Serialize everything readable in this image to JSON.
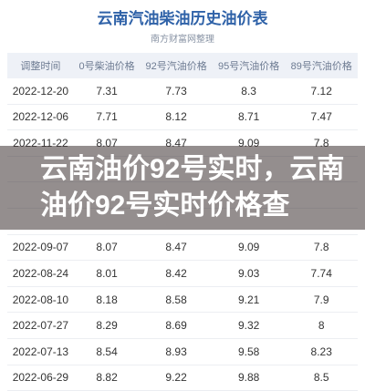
{
  "header": {
    "title": "云南汽油柴油历史油价表",
    "subtitle": "南方财富网整理"
  },
  "table": {
    "columns": [
      "调整时间",
      "0号柴油价格",
      "92号汽油价格",
      "95号汽油价格",
      "89号汽油价格"
    ],
    "rows": [
      [
        "2022-12-20",
        "7.31",
        "7.73",
        "8.3",
        "7.12"
      ],
      [
        "2022-12-06",
        "7.71",
        "8.12",
        "8.71",
        "7.47"
      ],
      [
        "2022-11-22",
        "8.07",
        "8.47",
        "9.09",
        "7.8"
      ],
      [
        "2022-09-07",
        "8.07",
        "8.47",
        "9.09",
        "7.8"
      ],
      [
        "2022-08-24",
        "8.01",
        "8.42",
        "9.03",
        "7.74"
      ],
      [
        "2022-08-10",
        "8.18",
        "8.58",
        "9.21",
        "7.9"
      ],
      [
        "2022-07-27",
        "8.29",
        "8.69",
        "9.32",
        "8"
      ],
      [
        "2022-07-13",
        "8.54",
        "8.93",
        "9.58",
        "8.23"
      ],
      [
        "2022-06-29",
        "8.82",
        "9.22",
        "9.88",
        "8.5"
      ]
    ]
  },
  "overlay": {
    "text": "云南油价92号实时，云南油价92号实时价格查"
  }
}
